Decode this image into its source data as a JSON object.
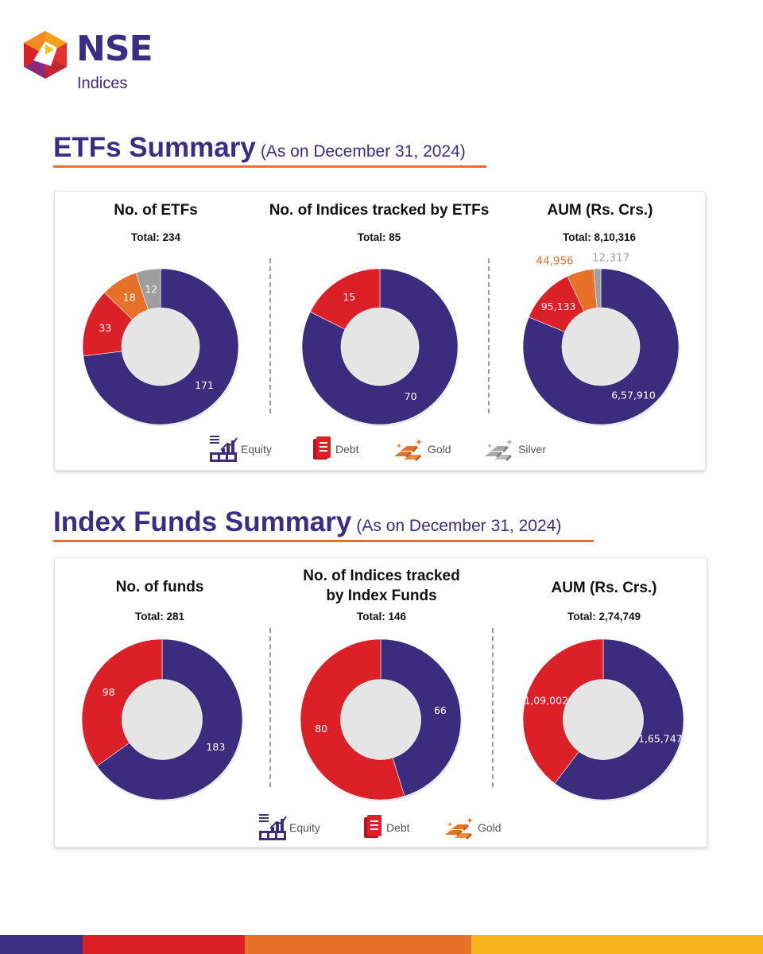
{
  "brand": {
    "name": "NSE",
    "sub": "Indices"
  },
  "colors": {
    "equity": "#3b2c7e",
    "debt": "#db2027",
    "gold": "#e8712a",
    "silver": "#9e9e9e",
    "title": "#3b2c84",
    "accent": "#e8712a"
  },
  "etf_section": {
    "title": "ETFs Summary",
    "asof": "(As on December 31, 2024)",
    "legend": [
      {
        "label": "Equity",
        "icon": "equity-chart-icon"
      },
      {
        "label": "Debt",
        "icon": "debt-document-icon"
      },
      {
        "label": "Gold",
        "icon": "gold-bars-icon"
      },
      {
        "label": "Silver",
        "icon": "silver-bars-icon"
      }
    ]
  },
  "index_section": {
    "title": "Index Funds Summary",
    "asof": "(As on December 31, 2024)",
    "legend": [
      {
        "label": "Equity",
        "icon": "equity-chart-icon"
      },
      {
        "label": "Debt",
        "icon": "debt-document-icon"
      },
      {
        "label": "Gold",
        "icon": "gold-bars-icon"
      }
    ]
  },
  "chart_data": [
    {
      "type": "pie",
      "title": "No. of ETFs",
      "total_label": "Total:  234",
      "slices": [
        {
          "name": "Equity",
          "value": 171,
          "label": "171"
        },
        {
          "name": "Debt",
          "value": 33,
          "label": "33"
        },
        {
          "name": "Gold",
          "value": 18,
          "label": "18"
        },
        {
          "name": "Silver",
          "value": 12,
          "label": "12"
        }
      ]
    },
    {
      "type": "pie",
      "title": "No. of Indices tracked by ETFs",
      "total_label": "Total: 85",
      "slices": [
        {
          "name": "Equity",
          "value": 70,
          "label": "70"
        },
        {
          "name": "Debt",
          "value": 15,
          "label": "15"
        }
      ]
    },
    {
      "type": "pie",
      "title": "AUM (Rs. Crs.)",
      "total_label": "Total:  8,10,316",
      "slices": [
        {
          "name": "Equity",
          "value": 657910,
          "label": "6,57,910"
        },
        {
          "name": "Debt",
          "value": 95133,
          "label": "95,133"
        },
        {
          "name": "Gold",
          "value": 44956,
          "label": "44,956"
        },
        {
          "name": "Silver",
          "value": 12317,
          "label": "12,317"
        }
      ]
    },
    {
      "type": "pie",
      "title": "No. of funds",
      "total_label": "Total:  281",
      "slices": [
        {
          "name": "Equity",
          "value": 183,
          "label": "183"
        },
        {
          "name": "Debt",
          "value": 98,
          "label": "98"
        }
      ]
    },
    {
      "type": "pie",
      "title": "No. of Indices tracked by Index Funds",
      "title_lines": [
        "No. of Indices tracked",
        "by Index Funds"
      ],
      "total_label": "Total:  146",
      "slices": [
        {
          "name": "Equity",
          "value": 66,
          "label": "66"
        },
        {
          "name": "Debt",
          "value": 80,
          "label": "80"
        }
      ]
    },
    {
      "type": "pie",
      "title": "AUM (Rs. Crs.)",
      "total_label": "Total:  2,74,749",
      "slices": [
        {
          "name": "Equity",
          "value": 165747,
          "label": "1,65,747"
        },
        {
          "name": "Debt",
          "value": 109002,
          "label": "1,09,002"
        }
      ]
    }
  ]
}
